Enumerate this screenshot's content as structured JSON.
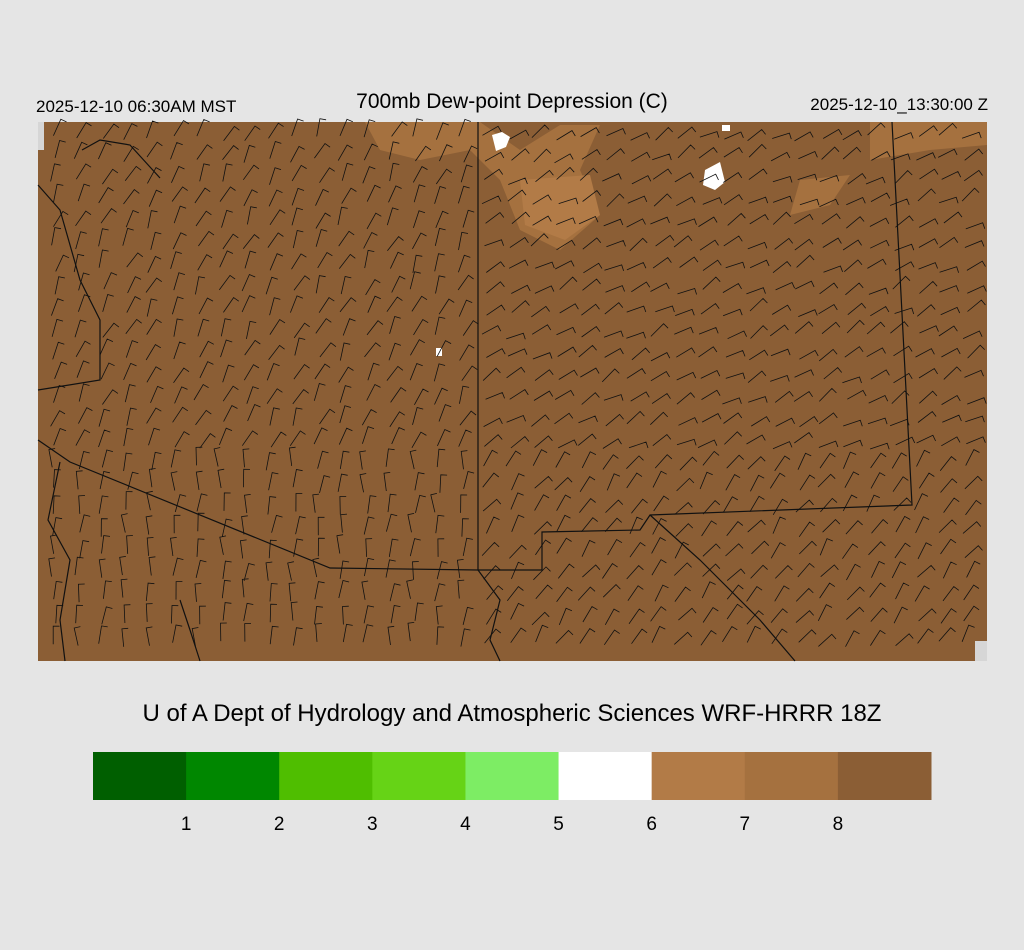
{
  "header": {
    "left": "2025-12-10 06:30AM MST",
    "title": "700mb Dew-point Depression (C)",
    "right": "2025-12-10_13:30:00 Z"
  },
  "footer": "U of A Dept of Hydrology and Atmospheric Sciences WRF-HRRR 18Z",
  "colorbar": {
    "colors": [
      "#005f00",
      "#008700",
      "#4fbe00",
      "#66d316",
      "#7ded64",
      "#ffffff",
      "#b27b47",
      "#a5713f",
      "#8b5e35"
    ],
    "ticks": [
      1,
      2,
      3,
      4,
      5,
      6,
      7,
      8
    ]
  }
}
